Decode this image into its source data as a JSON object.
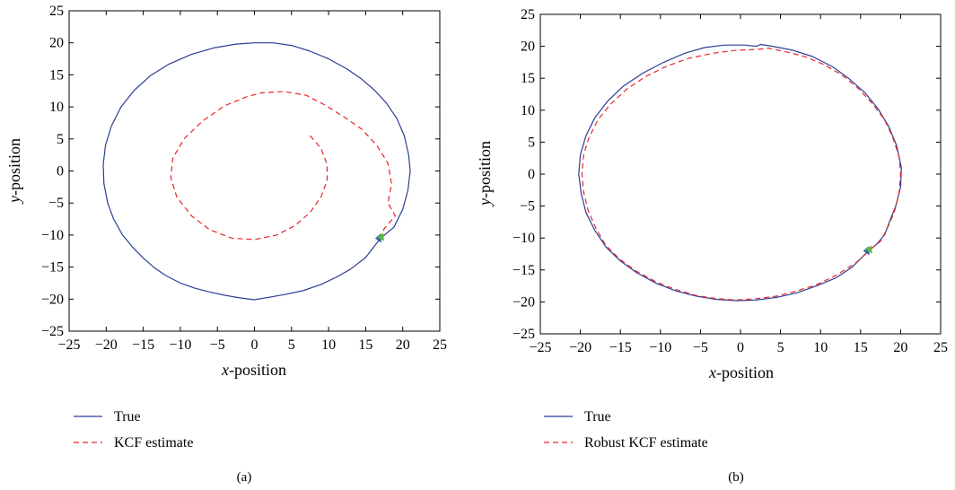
{
  "colors": {
    "true_line": "#2b3f95",
    "estimate_line": "#e8262a",
    "marker_green": "#5cb84a",
    "marker_blue": "#2b5fa8"
  },
  "chart_data": [
    {
      "type": "line",
      "panel_label": "(a)",
      "xlabel": {
        "var": "x",
        "rest": "-position"
      },
      "ylabel": {
        "var": "y",
        "rest": "-position"
      },
      "xlim": [
        -25,
        25
      ],
      "ylim": [
        -25,
        25
      ],
      "xticks": [
        -25,
        -20,
        -15,
        -10,
        -5,
        0,
        5,
        10,
        15,
        20,
        25
      ],
      "yticks": [
        -25,
        -20,
        -15,
        -10,
        -5,
        0,
        5,
        10,
        15,
        20,
        25
      ],
      "tick_labels": [
        "−25",
        "−20",
        "−15",
        "−10",
        "−5",
        "0",
        "5",
        "10",
        "15",
        "20",
        "25"
      ],
      "grid": false,
      "legend_position": "below",
      "series": [
        {
          "name": "True",
          "style": "solid",
          "points": [
            [
              17,
              -10.5
            ],
            [
              15,
              -13.5
            ],
            [
              13,
              -15.3
            ],
            [
              11,
              -16.6
            ],
            [
              9,
              -17.7
            ],
            [
              6.5,
              -18.7
            ],
            [
              4,
              -19.3
            ],
            [
              2,
              -19.7
            ],
            [
              0,
              -20.1
            ],
            [
              -2,
              -19.8
            ],
            [
              -4,
              -19.4
            ],
            [
              -6,
              -18.9
            ],
            [
              -8,
              -18.3
            ],
            [
              -10,
              -17.5
            ],
            [
              -12,
              -16.3
            ],
            [
              -13.5,
              -15.1
            ],
            [
              -15,
              -13.6
            ],
            [
              -16.5,
              -11.8
            ],
            [
              -17.8,
              -10
            ],
            [
              -19,
              -7.5
            ],
            [
              -19.8,
              -5
            ],
            [
              -20.3,
              -2
            ],
            [
              -20.4,
              1
            ],
            [
              -20.1,
              4
            ],
            [
              -19.3,
              7
            ],
            [
              -18,
              10
            ],
            [
              -16.2,
              12.6
            ],
            [
              -14,
              14.9
            ],
            [
              -11.5,
              16.7
            ],
            [
              -8.5,
              18.2
            ],
            [
              -5.5,
              19.2
            ],
            [
              -2.5,
              19.8
            ],
            [
              0,
              20
            ],
            [
              2.5,
              20
            ],
            [
              5,
              19.6
            ],
            [
              7.5,
              18.7
            ],
            [
              10,
              17.5
            ],
            [
              12.5,
              15.9
            ],
            [
              14.5,
              14.3
            ],
            [
              16.2,
              12.6
            ],
            [
              17.8,
              10.6
            ],
            [
              19.2,
              8.2
            ],
            [
              20.2,
              5.5
            ],
            [
              20.8,
              2.5
            ],
            [
              21,
              0
            ],
            [
              20.7,
              -3
            ],
            [
              20,
              -6
            ],
            [
              18.8,
              -8.8
            ],
            [
              17,
              -10.5
            ]
          ]
        },
        {
          "name": "KCF estimate",
          "style": "dashed",
          "points": [
            [
              7.5,
              5.5
            ],
            [
              9,
              3.5
            ],
            [
              9.8,
              1
            ],
            [
              9.8,
              -1.5
            ],
            [
              9,
              -4
            ],
            [
              7.5,
              -6.5
            ],
            [
              5.5,
              -8.5
            ],
            [
              3,
              -10
            ],
            [
              0,
              -10.7
            ],
            [
              -3,
              -10.5
            ],
            [
              -6,
              -9.2
            ],
            [
              -8.5,
              -7
            ],
            [
              -10.5,
              -4
            ],
            [
              -11.3,
              -1
            ],
            [
              -11,
              2
            ],
            [
              -9.5,
              5
            ],
            [
              -7,
              7.8
            ],
            [
              -4,
              10.2
            ],
            [
              -1,
              11.6
            ],
            [
              1,
              12.2
            ],
            [
              4,
              12.4
            ],
            [
              7,
              11.8
            ],
            [
              9.5,
              10.3
            ],
            [
              12,
              8.5
            ],
            [
              14.5,
              6.5
            ],
            [
              16.5,
              4
            ],
            [
              18,
              1.2
            ],
            [
              18.5,
              -2
            ],
            [
              18,
              -5
            ],
            [
              19,
              -7
            ],
            [
              17.5,
              -9
            ],
            [
              17,
              -10.2
            ]
          ]
        }
      ]
    },
    {
      "type": "line",
      "panel_label": "(b)",
      "xlabel": {
        "var": "x",
        "rest": "-position"
      },
      "ylabel": {
        "var": "y",
        "rest": "-position"
      },
      "xlim": [
        -25,
        25
      ],
      "ylim": [
        -25,
        25
      ],
      "xticks": [
        -25,
        -20,
        -15,
        -10,
        -5,
        0,
        5,
        10,
        15,
        20,
        25
      ],
      "yticks": [
        -25,
        -20,
        -15,
        -10,
        -5,
        0,
        5,
        10,
        15,
        20,
        25
      ],
      "tick_labels": [
        "−25",
        "−20",
        "−15",
        "−10",
        "−5",
        "0",
        "5",
        "10",
        "15",
        "20",
        "25"
      ],
      "grid": false,
      "legend_position": "below",
      "series": [
        {
          "name": "True",
          "style": "solid",
          "points": [
            [
              16,
              -12
            ],
            [
              14,
              -14.5
            ],
            [
              12,
              -16.2
            ],
            [
              9.5,
              -17.5
            ],
            [
              7,
              -18.6
            ],
            [
              4.5,
              -19.3
            ],
            [
              2,
              -19.7
            ],
            [
              -0.5,
              -19.8
            ],
            [
              -3,
              -19.6
            ],
            [
              -5.5,
              -19.1
            ],
            [
              -8,
              -18.3
            ],
            [
              -10.5,
              -17.1
            ],
            [
              -13,
              -15.4
            ],
            [
              -15,
              -13.6
            ],
            [
              -16.8,
              -11.4
            ],
            [
              -18.2,
              -8.8
            ],
            [
              -19.3,
              -6
            ],
            [
              -19.9,
              -3
            ],
            [
              -20.2,
              0
            ],
            [
              -20,
              3
            ],
            [
              -19.3,
              6
            ],
            [
              -18.2,
              8.8
            ],
            [
              -16.6,
              11.4
            ],
            [
              -14.6,
              13.8
            ],
            [
              -12.2,
              15.8
            ],
            [
              -9.6,
              17.5
            ],
            [
              -7,
              18.9
            ],
            [
              -4.5,
              19.8
            ],
            [
              -2,
              20.2
            ],
            [
              0.5,
              20.2
            ],
            [
              2,
              20
            ],
            [
              2.5,
              20.3
            ],
            [
              4,
              20
            ],
            [
              6.5,
              19.4
            ],
            [
              9,
              18.4
            ],
            [
              11.5,
              16.8
            ],
            [
              13.5,
              15
            ],
            [
              15.5,
              12.8
            ],
            [
              17.2,
              10.2
            ],
            [
              18.5,
              7.5
            ],
            [
              19.5,
              4.5
            ],
            [
              20.1,
              1
            ],
            [
              20,
              -2
            ],
            [
              19.4,
              -5
            ],
            [
              18.6,
              -7.5
            ],
            [
              18,
              -9.5
            ],
            [
              17,
              -11
            ],
            [
              16,
              -12
            ]
          ]
        },
        {
          "name": "Robust KCF estimate",
          "style": "dashed",
          "points": [
            [
              16.5,
              -11.5
            ],
            [
              14.5,
              -13.8
            ],
            [
              12,
              -15.8
            ],
            [
              9.5,
              -17.3
            ],
            [
              7,
              -18.3
            ],
            [
              4.5,
              -19.1
            ],
            [
              2,
              -19.5
            ],
            [
              -0.5,
              -19.7
            ],
            [
              -3,
              -19.5
            ],
            [
              -5.5,
              -19
            ],
            [
              -8,
              -18.1
            ],
            [
              -10.5,
              -16.9
            ],
            [
              -13,
              -15.2
            ],
            [
              -15,
              -13.4
            ],
            [
              -16.8,
              -11.2
            ],
            [
              -18,
              -8.6
            ],
            [
              -19,
              -5.8
            ],
            [
              -19.6,
              -2.8
            ],
            [
              -19.8,
              0
            ],
            [
              -19.6,
              3
            ],
            [
              -18.9,
              5.8
            ],
            [
              -17.8,
              8.5
            ],
            [
              -16.2,
              11
            ],
            [
              -14.2,
              13.3
            ],
            [
              -11.8,
              15.3
            ],
            [
              -9.2,
              16.9
            ],
            [
              -6.5,
              18.1
            ],
            [
              -3.5,
              18.9
            ],
            [
              -0.5,
              19.4
            ],
            [
              2,
              19.5
            ],
            [
              3.5,
              19.7
            ],
            [
              5.5,
              19.2
            ],
            [
              8,
              18.4
            ],
            [
              10.5,
              17.1
            ],
            [
              12.8,
              15.4
            ],
            [
              14.8,
              13.3
            ],
            [
              16.5,
              11
            ],
            [
              18,
              8.5
            ],
            [
              19,
              5.8
            ],
            [
              19.8,
              2.8
            ],
            [
              20,
              0
            ],
            [
              19.8,
              -3
            ],
            [
              19.2,
              -6
            ],
            [
              18.3,
              -8.6
            ],
            [
              17.5,
              -10.5
            ],
            [
              16.5,
              -11.5
            ]
          ]
        }
      ]
    }
  ]
}
